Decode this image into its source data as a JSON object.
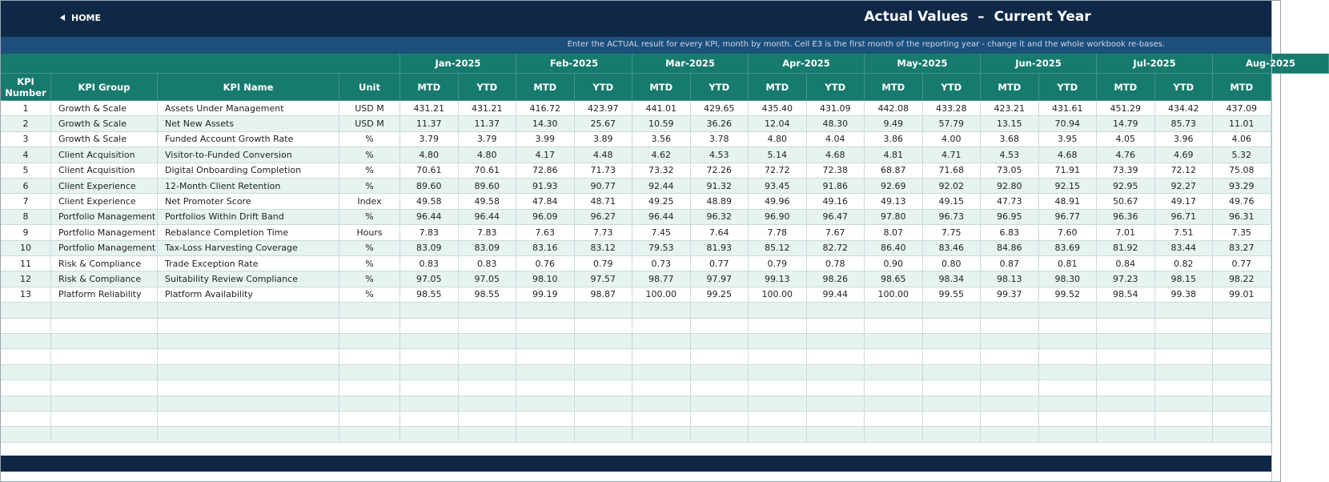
{
  "header": {
    "home": "HOME",
    "title": "Actual Values  –  Current Year",
    "info": "Enter the ACTUAL result for every KPI, month by month. Cell E3 is the first month of the reporting year - change it and the whole workbook re-bases."
  },
  "table": {
    "columns": [
      "KPI Number",
      "KPI Group",
      "KPI Name",
      "Unit"
    ],
    "months": [
      "Jan-2025",
      "Feb-2025",
      "Mar-2025",
      "Apr-2025",
      "May-2025",
      "Jun-2025",
      "Jul-2025",
      "Aug-2025"
    ],
    "subcolumns": [
      "MTD",
      "YTD",
      "MTD",
      "YTD",
      "MTD",
      "YTD",
      "MTD",
      "YTD",
      "MTD",
      "YTD",
      "MTD",
      "YTD",
      "MTD",
      "YTD",
      "MTD"
    ],
    "rows": [
      [
        "1",
        "Growth & Scale",
        "Assets Under Management",
        "USD M",
        "431.21",
        "431.21",
        "416.72",
        "423.97",
        "441.01",
        "429.65",
        "435.40",
        "431.09",
        "442.08",
        "433.28",
        "423.21",
        "431.61",
        "451.29",
        "434.42",
        "437.09"
      ],
      [
        "2",
        "Growth & Scale",
        "Net New Assets",
        "USD M",
        "11.37",
        "11.37",
        "14.30",
        "25.67",
        "10.59",
        "36.26",
        "12.04",
        "48.30",
        "9.49",
        "57.79",
        "13.15",
        "70.94",
        "14.79",
        "85.73",
        "11.01"
      ],
      [
        "3",
        "Growth & Scale",
        "Funded Account Growth Rate",
        "%",
        "3.79",
        "3.79",
        "3.99",
        "3.89",
        "3.56",
        "3.78",
        "4.80",
        "4.04",
        "3.86",
        "4.00",
        "3.68",
        "3.95",
        "4.05",
        "3.96",
        "4.06"
      ],
      [
        "4",
        "Client Acquisition",
        "Visitor-to-Funded Conversion",
        "%",
        "4.80",
        "4.80",
        "4.17",
        "4.48",
        "4.62",
        "4.53",
        "5.14",
        "4.68",
        "4.81",
        "4.71",
        "4.53",
        "4.68",
        "4.76",
        "4.69",
        "5.32"
      ],
      [
        "5",
        "Client Acquisition",
        "Digital Onboarding Completion",
        "%",
        "70.61",
        "70.61",
        "72.86",
        "71.73",
        "73.32",
        "72.26",
        "72.72",
        "72.38",
        "68.87",
        "71.68",
        "73.05",
        "71.91",
        "73.39",
        "72.12",
        "75.08"
      ],
      [
        "6",
        "Client Experience",
        "12-Month Client Retention",
        "%",
        "89.60",
        "89.60",
        "91.93",
        "90.77",
        "92.44",
        "91.32",
        "93.45",
        "91.86",
        "92.69",
        "92.02",
        "92.80",
        "92.15",
        "92.95",
        "92.27",
        "93.29"
      ],
      [
        "7",
        "Client Experience",
        "Net Promoter Score",
        "Index",
        "49.58",
        "49.58",
        "47.84",
        "48.71",
        "49.25",
        "48.89",
        "49.96",
        "49.16",
        "49.13",
        "49.15",
        "47.73",
        "48.91",
        "50.67",
        "49.17",
        "49.76"
      ],
      [
        "8",
        "Portfolio Management",
        "Portfolios Within Drift Band",
        "%",
        "96.44",
        "96.44",
        "96.09",
        "96.27",
        "96.44",
        "96.32",
        "96.90",
        "96.47",
        "97.80",
        "96.73",
        "96.95",
        "96.77",
        "96.36",
        "96.71",
        "96.31"
      ],
      [
        "9",
        "Portfolio Management",
        "Rebalance Completion Time",
        "Hours",
        "7.83",
        "7.83",
        "7.63",
        "7.73",
        "7.45",
        "7.64",
        "7.78",
        "7.67",
        "8.07",
        "7.75",
        "6.83",
        "7.60",
        "7.01",
        "7.51",
        "7.35"
      ],
      [
        "10",
        "Portfolio Management",
        "Tax-Loss Harvesting Coverage",
        "%",
        "83.09",
        "83.09",
        "83.16",
        "83.12",
        "79.53",
        "81.93",
        "85.12",
        "82.72",
        "86.40",
        "83.46",
        "84.86",
        "83.69",
        "81.92",
        "83.44",
        "83.27"
      ],
      [
        "11",
        "Risk & Compliance",
        "Trade Exception Rate",
        "%",
        "0.83",
        "0.83",
        "0.76",
        "0.79",
        "0.73",
        "0.77",
        "0.79",
        "0.78",
        "0.90",
        "0.80",
        "0.87",
        "0.81",
        "0.84",
        "0.82",
        "0.77"
      ],
      [
        "12",
        "Risk & Compliance",
        "Suitability Review Compliance",
        "%",
        "97.05",
        "97.05",
        "98.10",
        "97.57",
        "98.77",
        "97.97",
        "99.13",
        "98.26",
        "98.65",
        "98.34",
        "98.13",
        "98.30",
        "97.23",
        "98.15",
        "98.22"
      ],
      [
        "13",
        "Platform Reliability",
        "Platform Availability",
        "%",
        "98.55",
        "98.55",
        "99.19",
        "98.87",
        "100.00",
        "99.25",
        "100.00",
        "99.44",
        "100.00",
        "99.55",
        "99.37",
        "99.52",
        "98.54",
        "99.38",
        "99.01"
      ]
    ]
  }
}
